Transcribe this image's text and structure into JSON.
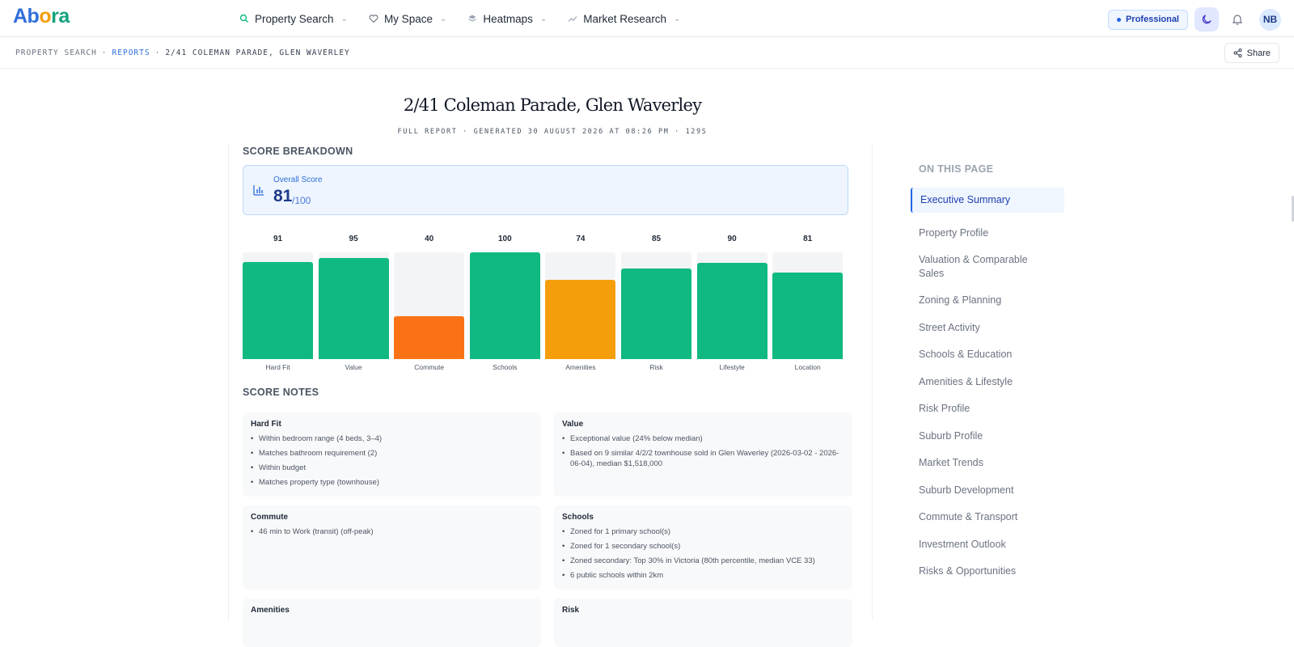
{
  "app": {
    "logo": {
      "a": "Ab",
      "o": "o",
      "ra": "ra"
    }
  },
  "nav": {
    "items": [
      {
        "label": "Property Search",
        "icon": "search-icon"
      },
      {
        "label": "My Space",
        "icon": "heart-icon"
      },
      {
        "label": "Heatmaps",
        "icon": "layers-icon"
      },
      {
        "label": "Market Research",
        "icon": "trend-icon"
      }
    ],
    "plan": "Professional",
    "avatar_initials": "NB"
  },
  "breadcrumb": {
    "root": "PROPERTY SEARCH",
    "sep": "·",
    "section": "REPORTS",
    "current": "2/41 COLEMAN PARADE, GLEN WAVERLEY"
  },
  "share_label": "Share",
  "report": {
    "title": "2/41 Coleman Parade, Glen Waverley",
    "subtitle": "FULL REPORT · GENERATED 30 AUGUST 2026 AT 08:26 PM · 129S"
  },
  "score_breakdown": {
    "heading": "SCORE BREAKDOWN",
    "overall_label": "Overall Score",
    "overall_value": "81",
    "overall_max": "/100"
  },
  "chart_data": {
    "type": "bar",
    "categories": [
      "Hard Fit",
      "Value",
      "Commute",
      "Schools",
      "Amenities",
      "Risk",
      "Lifestyle",
      "Location"
    ],
    "values": [
      91,
      95,
      40,
      100,
      74,
      85,
      90,
      81
    ],
    "colors": [
      "#10b981",
      "#10b981",
      "#f97316",
      "#10b981",
      "#f59e0b",
      "#10b981",
      "#10b981",
      "#10b981"
    ],
    "ylim": [
      0,
      100
    ]
  },
  "score_notes": {
    "heading": "SCORE NOTES",
    "cards": [
      {
        "title": "Hard Fit",
        "items": [
          "Within bedroom range (4 beds, 3–4)",
          "Matches bathroom requirement (2)",
          "Within budget",
          "Matches property type (townhouse)"
        ]
      },
      {
        "title": "Value",
        "items": [
          "Exceptional value (24% below median)",
          "Based on 9 similar 4/2/2 townhouse sold in Glen Waverley (2026-03-02 - 2026-06-04), median $1,518,000"
        ]
      },
      {
        "title": "Commute",
        "items": [
          "46 min to Work (transit) (off-peak)"
        ]
      },
      {
        "title": "Schools",
        "items": [
          "Zoned for 1 primary school(s)",
          "Zoned for 1 secondary school(s)",
          "Zoned secondary: Top 30% in Victoria (80th percentile, median VCE 33)",
          "6 public schools within 2km"
        ]
      },
      {
        "title": "Amenities",
        "items": []
      },
      {
        "title": "Risk",
        "items": []
      }
    ]
  },
  "toc": {
    "heading": "ON THIS PAGE",
    "items": [
      "Executive Summary",
      "Property Profile",
      "Valuation & Comparable Sales",
      "Zoning & Planning",
      "Street Activity",
      "Schools & Education",
      "Amenities & Lifestyle",
      "Risk Profile",
      "Suburb Profile",
      "Market Trends",
      "Suburb Development",
      "Commute & Transport",
      "Investment Outlook",
      "Risks & Opportunities"
    ],
    "active_index": 0
  }
}
